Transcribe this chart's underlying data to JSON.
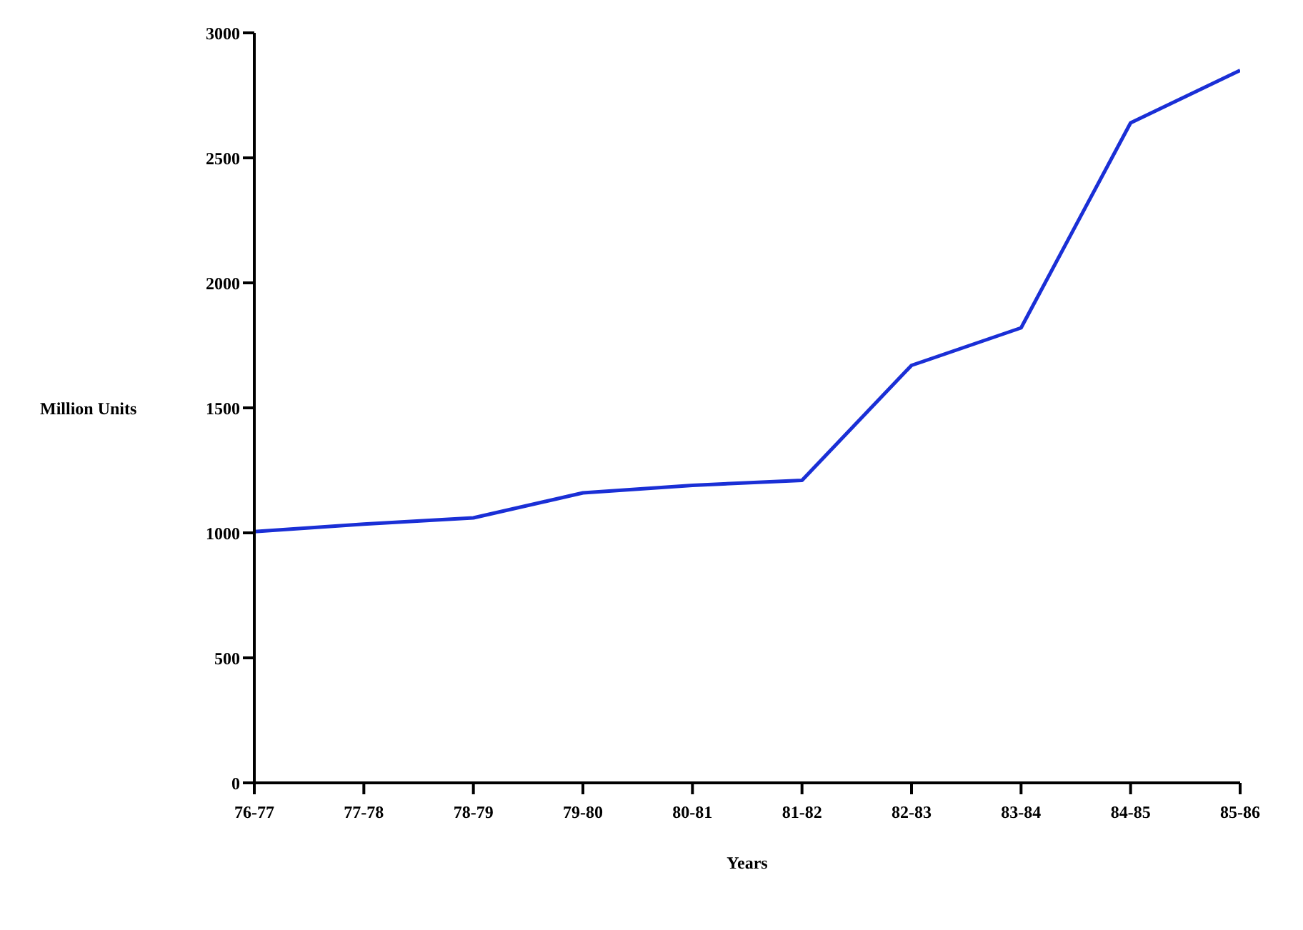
{
  "chart_data": {
    "type": "line",
    "xlabel": "Years",
    "ylabel": "Million Units",
    "categories": [
      "76-77",
      "77-78",
      "78-79",
      "79-80",
      "80-81",
      "81-82",
      "82-83",
      "83-84",
      "84-85",
      "85-86"
    ],
    "series": [
      {
        "color": "#1a2fd6",
        "values": [
          1005,
          1035,
          1060,
          1160,
          1190,
          1210,
          1670,
          1820,
          2640,
          2850
        ]
      }
    ],
    "ylim": [
      0,
      3000
    ],
    "yticks": [
      0,
      500,
      1000,
      1500,
      2000,
      2500,
      3000
    ],
    "grid": false,
    "legend": false,
    "marker": "none",
    "line_style": "solid"
  }
}
